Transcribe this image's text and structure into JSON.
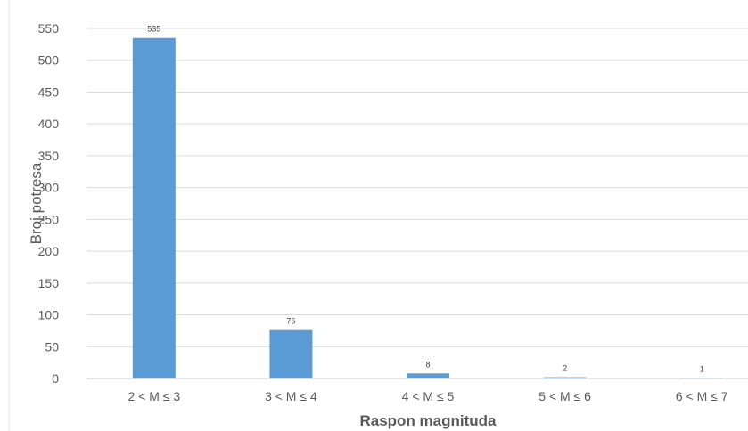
{
  "chart_data": {
    "type": "bar",
    "title": "",
    "xlabel": "Raspon magnituda",
    "ylabel": "Broj potresa",
    "categories": [
      "2 < M ≤ 3",
      "3 < M ≤ 4",
      "4 < M ≤ 5",
      "5 < M ≤ 6",
      "6 < M ≤ 7"
    ],
    "values": [
      535,
      76,
      8,
      2,
      1
    ],
    "data_labels": [
      "535",
      "76",
      "8",
      "2",
      "1"
    ],
    "ylim": [
      0,
      550
    ],
    "yticks": [
      0,
      50,
      100,
      150,
      200,
      250,
      300,
      350,
      400,
      450,
      500,
      550
    ],
    "grid": true,
    "legend": "none",
    "bar_color": "#5b9bd5",
    "grid_color": "#d9d9d9"
  }
}
